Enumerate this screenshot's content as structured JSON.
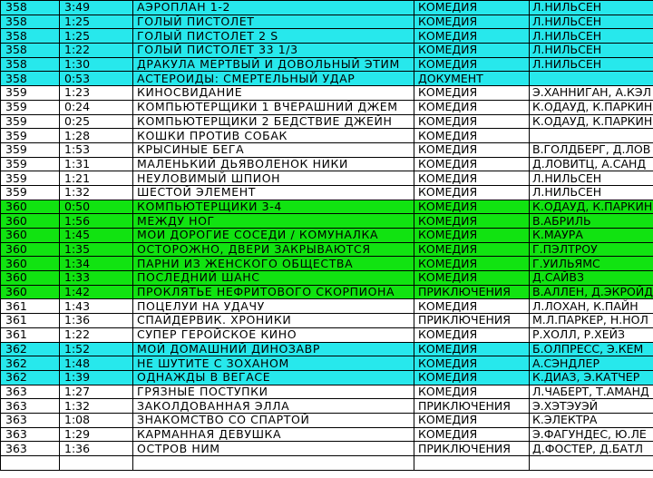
{
  "rows": [
    {
      "hl": "cyan",
      "num": "358",
      "dur": "3:49",
      "title": "АЭРОПЛАН 1-2",
      "genre": "КОМЕДИЯ",
      "dir": "Л.НИЛЬСЕН"
    },
    {
      "hl": "cyan",
      "num": "358",
      "dur": "1:25",
      "title": "ГОЛЫЙ ПИСТОЛЕТ",
      "genre": "КОМЕДИЯ",
      "dir": "Л.НИЛЬСЕН"
    },
    {
      "hl": "cyan",
      "num": "358",
      "dur": "1:25",
      "title": "ГОЛЫЙ ПИСТОЛЕТ 2 S",
      "genre": "КОМЕДИЯ",
      "dir": "Л.НИЛЬСЕН"
    },
    {
      "hl": "cyan",
      "num": "358",
      "dur": "1:22",
      "title": "ГОЛЫЙ ПИСТОЛЕТ 33 1/3",
      "genre": "КОМЕДИЯ",
      "dir": "Л.НИЛЬСЕН"
    },
    {
      "hl": "cyan",
      "num": "358",
      "dur": "1:30",
      "title": "ДРАКУЛА МЕРТВЫЙ И ДОВОЛЬНЫЙ ЭТИМ",
      "genre": "КОМЕДИЯ",
      "dir": "Л.НИЛЬСЕН"
    },
    {
      "hl": "cyan",
      "num": "358",
      "dur": "0:53",
      "title": "АСТЕРОИДЫ: СМЕРТЕЛЬНЫЙ УДАР",
      "genre": "ДОКУМЕНТ",
      "dir": ""
    },
    {
      "hl": "plain",
      "num": "359",
      "dur": "1:23",
      "title": "КИНОСВИДАНИЕ",
      "genre": "КОМЕДИЯ",
      "dir": "Э.ХАННИГАН, А.КЭЛ"
    },
    {
      "hl": "plain",
      "num": "359",
      "dur": "0:24",
      "title": "КОМПЬЮТЕРЩИКИ 1 ВЧЕРАШНИЙ ДЖЕМ",
      "genre": "КОМЕДИЯ",
      "dir": "К.ОДАУД, К.ПАРКИН"
    },
    {
      "hl": "plain",
      "num": "359",
      "dur": "0:25",
      "title": "КОМПЬЮТЕРЩИКИ 2 БЕДСТВИЕ ДЖЕЙН",
      "genre": "КОМЕДИЯ",
      "dir": "К.ОДАУД, К.ПАРКИН"
    },
    {
      "hl": "plain",
      "num": "359",
      "dur": "1:28",
      "title": "КОШКИ ПРОТИВ СОБАК",
      "genre": "КОМЕДИЯ",
      "dir": ""
    },
    {
      "hl": "plain",
      "num": "359",
      "dur": "1:53",
      "title": "КРЫСИНЫЕ БЕГА",
      "genre": "КОМЕДИЯ",
      "dir": "В.ГОЛДБЕРГ, Д.ЛОВ"
    },
    {
      "hl": "plain",
      "num": "359",
      "dur": "1:31",
      "title": "МАЛЕНЬКИЙ ДЬЯВОЛЕНОК НИКИ",
      "genre": "КОМЕДИЯ",
      "dir": "Д.ЛОВИТЦ, А.САНД"
    },
    {
      "hl": "plain",
      "num": "359",
      "dur": "1:21",
      "title": "НЕУЛОВИМЫЙ ШПИОН",
      "genre": "КОМЕДИЯ",
      "dir": "Л.НИЛЬСЕН"
    },
    {
      "hl": "plain",
      "num": "359",
      "dur": "1:32",
      "title": "ШЕСТОЙ ЭЛЕМЕНТ",
      "genre": "КОМЕДИЯ",
      "dir": "Л.НИЛЬСЕН"
    },
    {
      "hl": "green",
      "num": "360",
      "dur": "0:50",
      "title": "КОМПЬЮТЕРЩИКИ 3-4",
      "genre": "КОМЕДИЯ",
      "dir": "К.ОДАУД, К.ПАРКИН"
    },
    {
      "hl": "green",
      "num": "360",
      "dur": "1:56",
      "title": "МЕЖДУ НОГ",
      "genre": "КОМЕДИЯ",
      "dir": "В.АБРИЛЬ"
    },
    {
      "hl": "green",
      "num": "360",
      "dur": "1:45",
      "title": "МОИ ДОРОГИЕ СОСЕДИ / КОМУНАЛКА",
      "genre": "КОМЕДИЯ",
      "dir": "К.МАУРА"
    },
    {
      "hl": "green",
      "num": "360",
      "dur": "1:35",
      "title": "ОСТОРОЖНО, ДВЕРИ ЗАКРЫВАЮТСЯ",
      "genre": "КОМЕДИЯ",
      "dir": "Г.ПЭЛТРОУ"
    },
    {
      "hl": "green",
      "num": "360",
      "dur": "1:34",
      "title": "ПАРНИ ИЗ ЖЕНСКОГО ОБЩЕСТВА",
      "genre": "КОМЕДИЯ",
      "dir": "Г.УИЛЬЯМС"
    },
    {
      "hl": "green",
      "num": "360",
      "dur": "1:33",
      "title": "ПОСЛЕДНИЙ ШАНС",
      "genre": "КОМЕДИЯ",
      "dir": "Д.САЙВЗ"
    },
    {
      "hl": "green",
      "num": "360",
      "dur": "1:42",
      "title": "ПРОКЛЯТЬЕ НЕФРИТОВОГО СКОРПИОНА",
      "genre": "ПРИКЛЮЧЕНИЯ",
      "dir": "В.АЛЛЕН, Д.ЭКРОЙД"
    },
    {
      "hl": "plain",
      "num": "361",
      "dur": "1:43",
      "title": "ПОЦЕЛУИ НА УДАЧУ",
      "genre": "КОМЕДИЯ",
      "dir": "Л.ЛОХАН, К.ПАЙН"
    },
    {
      "hl": "plain",
      "num": "361",
      "dur": "1:36",
      "title": "СПАЙДЕРВИК. ХРОНИКИ",
      "genre": "ПРИКЛЮЧЕНИЯ",
      "dir": "М.Л.ПАРКЕР, Н.НОЛ"
    },
    {
      "hl": "plain",
      "num": "361",
      "dur": "1:22",
      "title": "СУПЕР ГЕРОЙСКОЕ КИНО",
      "genre": "КОМЕДИЯ",
      "dir": "Р.ХОЛЛ, Р.ХЕЙЗ"
    },
    {
      "hl": "cyan",
      "num": "362",
      "dur": "1:52",
      "title": "МОЙ ДОМАШНИЙ ДИНОЗАВР",
      "genre": "КОМЕДИЯ",
      "dir": "Б.ОЛПРЕСС, Э.КЕМ"
    },
    {
      "hl": "cyan",
      "num": "362",
      "dur": "1:48",
      "title": "НЕ ШУТИТЕ С ЗОХАНОМ",
      "genre": "КОМЕДИЯ",
      "dir": "А.СЭНДЛЕР"
    },
    {
      "hl": "cyan",
      "num": "362",
      "dur": "1:39",
      "title": "ОДНАЖДЫ В ВЕГАСЕ",
      "genre": "КОМЕДИЯ",
      "dir": "К.ДИАЗ, Э.КАТЧЕР"
    },
    {
      "hl": "plain",
      "num": "363",
      "dur": "1:27",
      "title": "ГРЯЗНЫЕ ПОСТУПКИ",
      "genre": "КОМЕДИЯ",
      "dir": "Л.ЧАБЕРТ, Т.АМАНД"
    },
    {
      "hl": "plain",
      "num": "363",
      "dur": "1:32",
      "title": "ЗАКОЛДОВАННАЯ ЭЛЛА",
      "genre": "ПРИКЛЮЧЕНИЯ",
      "dir": "Э.ХЭТЭУЭЙ"
    },
    {
      "hl": "plain",
      "num": "363",
      "dur": "1:08",
      "title": "ЗНАКОМСТВО СО СПАРТОЙ",
      "genre": "КОМЕДИЯ",
      "dir": "К.ЭЛЕКТРА"
    },
    {
      "hl": "plain",
      "num": "363",
      "dur": "1:29",
      "title": "КАРМАННАЯ ДЕВУШКА",
      "genre": "КОМЕДИЯ",
      "dir": "Э.ФАГУНДЕС, Ю.ЛЕ"
    },
    {
      "hl": "plain",
      "num": "363",
      "dur": "1:36",
      "title": "ОСТРОВ НИМ",
      "genre": "ПРИКЛЮЧЕНИЯ",
      "dir": "Д.ФОСТЕР, Д.БАТЛ"
    },
    {
      "hl": "blank",
      "num": "",
      "dur": "",
      "title": "",
      "genre": "",
      "dir": ""
    }
  ]
}
